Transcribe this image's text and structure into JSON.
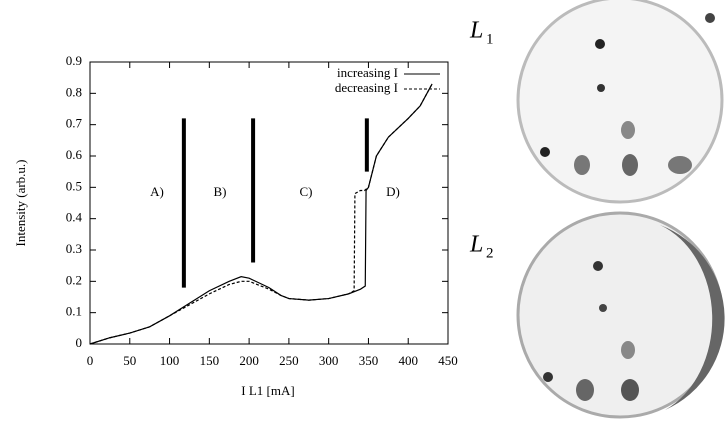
{
  "chart_data": {
    "type": "line",
    "xlabel": "I L1 [mA]",
    "ylabel": "Intensity (arb.u.)",
    "xlim": [
      0,
      450
    ],
    "ylim": [
      0,
      0.9
    ],
    "xticks": [
      0,
      50,
      100,
      150,
      200,
      250,
      300,
      350,
      400,
      450
    ],
    "yticks": [
      0,
      0.1,
      0.2,
      0.3,
      0.4,
      0.5,
      0.6,
      0.7,
      0.8,
      0.9
    ],
    "legend": "upper right",
    "series": [
      {
        "name": "increasing I",
        "color": "#000000",
        "dash": false,
        "x": [
          0,
          25,
          50,
          75,
          100,
          125,
          150,
          175,
          190,
          200,
          225,
          240,
          250,
          275,
          300,
          325,
          340,
          346,
          347,
          350,
          355,
          360,
          375,
          400,
          415,
          430
        ],
        "values": [
          0,
          0.02,
          0.035,
          0.055,
          0.09,
          0.13,
          0.17,
          0.2,
          0.215,
          0.21,
          0.18,
          0.155,
          0.145,
          0.14,
          0.145,
          0.16,
          0.175,
          0.185,
          0.49,
          0.5,
          0.55,
          0.6,
          0.66,
          0.72,
          0.76,
          0.83
        ]
      },
      {
        "name": "decreasing I",
        "color": "#000000",
        "dash": true,
        "x": [
          0,
          25,
          50,
          75,
          100,
          125,
          150,
          175,
          190,
          200,
          225,
          240,
          250,
          275,
          300,
          325,
          332,
          333,
          340,
          345,
          350,
          355,
          360,
          375,
          400,
          415,
          430
        ],
        "values": [
          0,
          0.02,
          0.035,
          0.055,
          0.09,
          0.125,
          0.16,
          0.19,
          0.2,
          0.2,
          0.175,
          0.155,
          0.145,
          0.14,
          0.145,
          0.16,
          0.17,
          0.48,
          0.49,
          0.49,
          0.5,
          0.55,
          0.6,
          0.66,
          0.72,
          0.76,
          0.83
        ]
      }
    ],
    "boundaries": [
      {
        "x": 118,
        "ymin": 0.18,
        "ymax": 0.72
      },
      {
        "x": 205,
        "ymin": 0.26,
        "ymax": 0.72
      },
      {
        "x": 348,
        "ymin": 0.55,
        "ymax": 0.72
      }
    ],
    "annotations": [
      "A)",
      "B)",
      "C)",
      "D)"
    ]
  },
  "panels": [
    {
      "label": "L",
      "subscript": "1"
    },
    {
      "label": "L",
      "subscript": "2"
    }
  ]
}
